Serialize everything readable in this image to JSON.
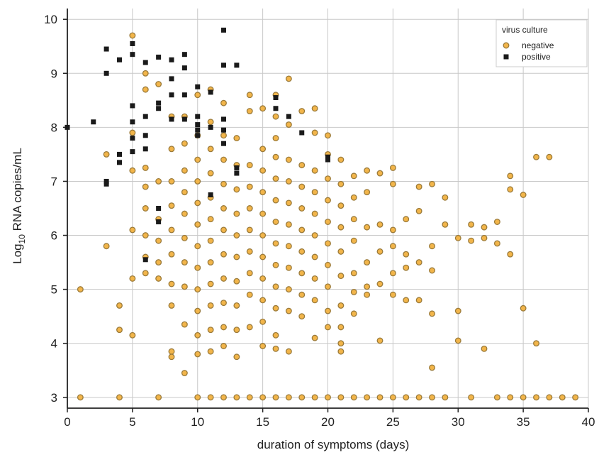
{
  "chart_data": {
    "type": "scatter",
    "xlabel": "duration of symptoms (days)",
    "ylabel_main": "Log",
    "ylabel_sub": "10",
    "ylabel_rest": " RNA copies/mL",
    "xlim": [
      0,
      40
    ],
    "ylim": [
      2.8,
      10.2
    ],
    "x_ticks": [
      0,
      5,
      10,
      15,
      20,
      25,
      30,
      35,
      40
    ],
    "x_tick_labels": [
      "0",
      "5",
      "10",
      "15",
      "20",
      "25",
      "30",
      "35",
      "40"
    ],
    "y_ticks": [
      3,
      4,
      5,
      6,
      7,
      8,
      9,
      10
    ],
    "y_tick_labels": [
      "3",
      "4",
      "5",
      "6",
      "7",
      "8",
      "9",
      "10"
    ],
    "grid": true,
    "legend": {
      "title": "virus culture",
      "placement": "top-right",
      "entries": [
        "negative",
        "positive"
      ]
    },
    "colors": {
      "negative_fill": "#f2b54a",
      "negative_stroke": "#9a7a3a",
      "positive": "#1a1a1a",
      "grid": "#c8c8c8"
    },
    "series": [
      {
        "name": "positive",
        "marker": "square",
        "points": [
          [
            0,
            8.0
          ],
          [
            2,
            8.1
          ],
          [
            3,
            9.45
          ],
          [
            3,
            9.0
          ],
          [
            3,
            7.0
          ],
          [
            3,
            6.95
          ],
          [
            4,
            9.25
          ],
          [
            4,
            7.5
          ],
          [
            4,
            7.35
          ],
          [
            5,
            9.35
          ],
          [
            5,
            9.55
          ],
          [
            5,
            8.4
          ],
          [
            5,
            8.1
          ],
          [
            5,
            7.8
          ],
          [
            5,
            7.55
          ],
          [
            6,
            9.2
          ],
          [
            6,
            8.2
          ],
          [
            6,
            7.85
          ],
          [
            6,
            7.6
          ],
          [
            6,
            5.55
          ],
          [
            7,
            9.3
          ],
          [
            7,
            8.45
          ],
          [
            7,
            8.35
          ],
          [
            7,
            6.5
          ],
          [
            7,
            6.25
          ],
          [
            8,
            9.25
          ],
          [
            8,
            8.9
          ],
          [
            8,
            8.6
          ],
          [
            8,
            8.15
          ],
          [
            9,
            9.35
          ],
          [
            9,
            9.1
          ],
          [
            9,
            8.6
          ],
          [
            9,
            8.15
          ],
          [
            10,
            8.75
          ],
          [
            10,
            8.2
          ],
          [
            10,
            8.05
          ],
          [
            10,
            7.95
          ],
          [
            10,
            7.85
          ],
          [
            11,
            8.65
          ],
          [
            11,
            8.0
          ],
          [
            11,
            6.75
          ],
          [
            12,
            9.8
          ],
          [
            12,
            9.15
          ],
          [
            12,
            8.15
          ],
          [
            12,
            7.95
          ],
          [
            12,
            7.7
          ],
          [
            13,
            9.15
          ],
          [
            13,
            7.25
          ],
          [
            13,
            7.15
          ],
          [
            16,
            8.55
          ],
          [
            16,
            8.35
          ],
          [
            17,
            8.2
          ],
          [
            18,
            7.9
          ],
          [
            20,
            7.45
          ],
          [
            20,
            7.4
          ]
        ]
      },
      {
        "name": "negative",
        "marker": "circle",
        "points": [
          [
            1,
            3.0
          ],
          [
            1,
            5.0
          ],
          [
            3,
            7.5
          ],
          [
            3,
            5.8
          ],
          [
            4,
            4.7
          ],
          [
            4,
            4.25
          ],
          [
            4,
            3.0
          ],
          [
            5,
            9.7
          ],
          [
            5,
            7.9
          ],
          [
            5,
            7.2
          ],
          [
            5,
            6.1
          ],
          [
            5,
            5.2
          ],
          [
            5,
            4.15
          ],
          [
            6,
            9.0
          ],
          [
            6,
            8.7
          ],
          [
            6,
            7.25
          ],
          [
            6,
            6.9
          ],
          [
            6,
            6.5
          ],
          [
            6,
            6.0
          ],
          [
            6,
            5.6
          ],
          [
            6,
            5.3
          ],
          [
            7,
            8.8
          ],
          [
            7,
            7.0
          ],
          [
            7,
            6.3
          ],
          [
            7,
            5.9
          ],
          [
            7,
            5.5
          ],
          [
            7,
            5.2
          ],
          [
            7,
            3.0
          ],
          [
            8,
            8.2
          ],
          [
            8,
            7.6
          ],
          [
            8,
            7.0
          ],
          [
            8,
            6.55
          ],
          [
            8,
            6.1
          ],
          [
            8,
            5.65
          ],
          [
            8,
            5.1
          ],
          [
            8,
            4.7
          ],
          [
            8,
            3.85
          ],
          [
            8,
            3.75
          ],
          [
            9,
            8.2
          ],
          [
            9,
            7.7
          ],
          [
            9,
            7.2
          ],
          [
            9,
            6.8
          ],
          [
            9,
            6.4
          ],
          [
            9,
            5.95
          ],
          [
            9,
            5.5
          ],
          [
            9,
            5.05
          ],
          [
            9,
            4.35
          ],
          [
            9,
            3.45
          ],
          [
            10,
            8.6
          ],
          [
            10,
            7.85
          ],
          [
            10,
            7.4
          ],
          [
            10,
            7.0
          ],
          [
            10,
            6.6
          ],
          [
            10,
            6.2
          ],
          [
            10,
            5.8
          ],
          [
            10,
            5.4
          ],
          [
            10,
            5.0
          ],
          [
            10,
            4.6
          ],
          [
            10,
            4.15
          ],
          [
            10,
            3.8
          ],
          [
            10,
            3.0
          ],
          [
            11,
            8.7
          ],
          [
            11,
            8.1
          ],
          [
            11,
            7.6
          ],
          [
            11,
            7.15
          ],
          [
            11,
            6.7
          ],
          [
            11,
            6.3
          ],
          [
            11,
            5.9
          ],
          [
            11,
            5.5
          ],
          [
            11,
            5.1
          ],
          [
            11,
            4.7
          ],
          [
            11,
            4.25
          ],
          [
            11,
            3.85
          ],
          [
            11,
            3.0
          ],
          [
            12,
            8.45
          ],
          [
            12,
            7.85
          ],
          [
            12,
            7.4
          ],
          [
            12,
            6.95
          ],
          [
            12,
            6.5
          ],
          [
            12,
            6.1
          ],
          [
            12,
            5.65
          ],
          [
            12,
            5.2
          ],
          [
            12,
            4.75
          ],
          [
            12,
            4.3
          ],
          [
            12,
            3.95
          ],
          [
            12,
            3.0
          ],
          [
            13,
            7.8
          ],
          [
            13,
            7.3
          ],
          [
            13,
            6.85
          ],
          [
            13,
            6.4
          ],
          [
            13,
            6.0
          ],
          [
            13,
            5.6
          ],
          [
            13,
            5.15
          ],
          [
            13,
            4.7
          ],
          [
            13,
            4.25
          ],
          [
            13,
            3.75
          ],
          [
            13,
            3.0
          ],
          [
            14,
            8.6
          ],
          [
            14,
            8.3
          ],
          [
            14,
            7.3
          ],
          [
            14,
            6.9
          ],
          [
            14,
            6.5
          ],
          [
            14,
            6.1
          ],
          [
            14,
            5.7
          ],
          [
            14,
            5.3
          ],
          [
            14,
            4.9
          ],
          [
            14,
            4.3
          ],
          [
            14,
            3.0
          ],
          [
            15,
            8.35
          ],
          [
            15,
            7.6
          ],
          [
            15,
            7.2
          ],
          [
            15,
            6.8
          ],
          [
            15,
            6.4
          ],
          [
            15,
            6.0
          ],
          [
            15,
            5.6
          ],
          [
            15,
            5.2
          ],
          [
            15,
            4.8
          ],
          [
            15,
            4.4
          ],
          [
            15,
            3.95
          ],
          [
            15,
            3.0
          ],
          [
            16,
            8.6
          ],
          [
            16,
            8.2
          ],
          [
            16,
            7.8
          ],
          [
            16,
            7.45
          ],
          [
            16,
            7.05
          ],
          [
            16,
            6.65
          ],
          [
            16,
            6.25
          ],
          [
            16,
            5.85
          ],
          [
            16,
            5.45
          ],
          [
            16,
            5.05
          ],
          [
            16,
            4.65
          ],
          [
            16,
            4.15
          ],
          [
            16,
            3.9
          ],
          [
            16,
            3.0
          ],
          [
            17,
            8.9
          ],
          [
            17,
            8.05
          ],
          [
            17,
            7.4
          ],
          [
            17,
            7.0
          ],
          [
            17,
            6.6
          ],
          [
            17,
            6.2
          ],
          [
            17,
            5.8
          ],
          [
            17,
            5.4
          ],
          [
            17,
            5.0
          ],
          [
            17,
            4.6
          ],
          [
            17,
            3.85
          ],
          [
            17,
            3.0
          ],
          [
            18,
            8.3
          ],
          [
            18,
            7.3
          ],
          [
            18,
            6.9
          ],
          [
            18,
            6.5
          ],
          [
            18,
            6.1
          ],
          [
            18,
            5.7
          ],
          [
            18,
            5.3
          ],
          [
            18,
            4.9
          ],
          [
            18,
            4.5
          ],
          [
            18,
            3.0
          ],
          [
            19,
            8.35
          ],
          [
            19,
            7.9
          ],
          [
            19,
            7.2
          ],
          [
            19,
            6.8
          ],
          [
            19,
            6.4
          ],
          [
            19,
            6.0
          ],
          [
            19,
            5.6
          ],
          [
            19,
            5.2
          ],
          [
            19,
            4.8
          ],
          [
            19,
            4.1
          ],
          [
            19,
            3.0
          ],
          [
            20,
            7.85
          ],
          [
            20,
            7.5
          ],
          [
            20,
            7.05
          ],
          [
            20,
            6.65
          ],
          [
            20,
            6.25
          ],
          [
            20,
            5.85
          ],
          [
            20,
            5.45
          ],
          [
            20,
            5.05
          ],
          [
            20,
            4.6
          ],
          [
            20,
            4.3
          ],
          [
            20,
            3.0
          ],
          [
            21,
            7.4
          ],
          [
            21,
            6.95
          ],
          [
            21,
            6.55
          ],
          [
            21,
            6.15
          ],
          [
            21,
            5.7
          ],
          [
            21,
            5.25
          ],
          [
            21,
            4.7
          ],
          [
            21,
            4.3
          ],
          [
            21,
            4.0
          ],
          [
            21,
            3.85
          ],
          [
            21,
            3.0
          ],
          [
            22,
            7.1
          ],
          [
            22,
            6.7
          ],
          [
            22,
            6.3
          ],
          [
            22,
            5.9
          ],
          [
            22,
            5.3
          ],
          [
            22,
            4.95
          ],
          [
            22,
            4.55
          ],
          [
            22,
            3.0
          ],
          [
            23,
            7.2
          ],
          [
            23,
            6.8
          ],
          [
            23,
            6.15
          ],
          [
            23,
            5.5
          ],
          [
            23,
            5.05
          ],
          [
            23,
            4.9
          ],
          [
            23,
            3.0
          ],
          [
            24,
            7.15
          ],
          [
            24,
            6.2
          ],
          [
            24,
            5.7
          ],
          [
            24,
            5.1
          ],
          [
            24,
            4.05
          ],
          [
            24,
            3.0
          ],
          [
            25,
            7.25
          ],
          [
            25,
            6.95
          ],
          [
            25,
            6.1
          ],
          [
            25,
            5.8
          ],
          [
            25,
            5.3
          ],
          [
            25,
            4.9
          ],
          [
            25,
            3.0
          ],
          [
            26,
            6.3
          ],
          [
            26,
            5.65
          ],
          [
            26,
            5.4
          ],
          [
            26,
            4.8
          ],
          [
            26,
            3.0
          ],
          [
            27,
            6.9
          ],
          [
            27,
            6.45
          ],
          [
            27,
            5.5
          ],
          [
            27,
            4.8
          ],
          [
            27,
            3.0
          ],
          [
            28,
            6.95
          ],
          [
            28,
            5.8
          ],
          [
            28,
            5.35
          ],
          [
            28,
            4.55
          ],
          [
            28,
            3.55
          ],
          [
            28,
            3.0
          ],
          [
            29,
            6.7
          ],
          [
            29,
            6.2
          ],
          [
            29,
            3.0
          ],
          [
            30,
            5.95
          ],
          [
            30,
            4.6
          ],
          [
            30,
            4.05
          ],
          [
            31,
            6.2
          ],
          [
            31,
            5.9
          ],
          [
            31,
            3.0
          ],
          [
            32,
            6.15
          ],
          [
            32,
            5.95
          ],
          [
            32,
            3.9
          ],
          [
            33,
            6.25
          ],
          [
            33,
            5.85
          ],
          [
            33,
            3.0
          ],
          [
            34,
            7.1
          ],
          [
            34,
            6.85
          ],
          [
            34,
            5.65
          ],
          [
            34,
            3.0
          ],
          [
            35,
            6.75
          ],
          [
            35,
            4.65
          ],
          [
            35,
            3.0
          ],
          [
            36,
            7.45
          ],
          [
            36,
            4.0
          ],
          [
            36,
            3.0
          ],
          [
            37,
            7.45
          ],
          [
            37,
            3.0
          ],
          [
            38,
            3.0
          ],
          [
            39,
            3.0
          ]
        ]
      }
    ]
  }
}
